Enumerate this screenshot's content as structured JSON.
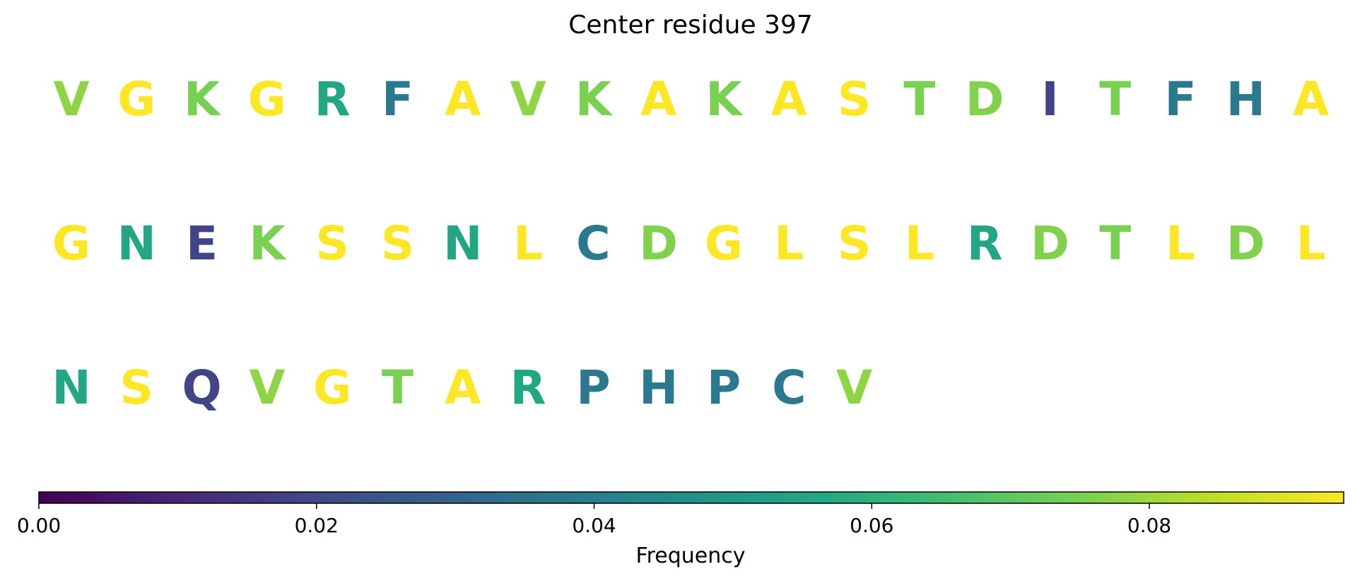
{
  "chart_data": {
    "type": "heatmap",
    "title": "Center residue 397",
    "colormap": "viridis",
    "residues": [
      {
        "letter": "V",
        "value": 0.078
      },
      {
        "letter": "G",
        "value": 0.094
      },
      {
        "letter": "K",
        "value": 0.075
      },
      {
        "letter": "G",
        "value": 0.094
      },
      {
        "letter": "R",
        "value": 0.056
      },
      {
        "letter": "F",
        "value": 0.038
      },
      {
        "letter": "A",
        "value": 0.094
      },
      {
        "letter": "V",
        "value": 0.078
      },
      {
        "letter": "K",
        "value": 0.075
      },
      {
        "letter": "A",
        "value": 0.094
      },
      {
        "letter": "K",
        "value": 0.075
      },
      {
        "letter": "A",
        "value": 0.094
      },
      {
        "letter": "S",
        "value": 0.094
      },
      {
        "letter": "T",
        "value": 0.075
      },
      {
        "letter": "D",
        "value": 0.076
      },
      {
        "letter": "I",
        "value": 0.019
      },
      {
        "letter": "T",
        "value": 0.075
      },
      {
        "letter": "F",
        "value": 0.038
      },
      {
        "letter": "H",
        "value": 0.038
      },
      {
        "letter": "A",
        "value": 0.094
      },
      {
        "letter": "G",
        "value": 0.094
      },
      {
        "letter": "N",
        "value": 0.056
      },
      {
        "letter": "E",
        "value": 0.019
      },
      {
        "letter": "K",
        "value": 0.075
      },
      {
        "letter": "S",
        "value": 0.094
      },
      {
        "letter": "S",
        "value": 0.094
      },
      {
        "letter": "N",
        "value": 0.056
      },
      {
        "letter": "L",
        "value": 0.094
      },
      {
        "letter": "C",
        "value": 0.038
      },
      {
        "letter": "D",
        "value": 0.076
      },
      {
        "letter": "G",
        "value": 0.094
      },
      {
        "letter": "L",
        "value": 0.094
      },
      {
        "letter": "S",
        "value": 0.094
      },
      {
        "letter": "L",
        "value": 0.094
      },
      {
        "letter": "R",
        "value": 0.056
      },
      {
        "letter": "D",
        "value": 0.076
      },
      {
        "letter": "T",
        "value": 0.075
      },
      {
        "letter": "L",
        "value": 0.094
      },
      {
        "letter": "D",
        "value": 0.076
      },
      {
        "letter": "L",
        "value": 0.094
      },
      {
        "letter": "N",
        "value": 0.056
      },
      {
        "letter": "S",
        "value": 0.094
      },
      {
        "letter": "Q",
        "value": 0.019
      },
      {
        "letter": "V",
        "value": 0.078
      },
      {
        "letter": "G",
        "value": 0.094
      },
      {
        "letter": "T",
        "value": 0.075
      },
      {
        "letter": "A",
        "value": 0.094
      },
      {
        "letter": "R",
        "value": 0.056
      },
      {
        "letter": "P",
        "value": 0.038
      },
      {
        "letter": "H",
        "value": 0.038
      },
      {
        "letter": "P",
        "value": 0.038
      },
      {
        "letter": "C",
        "value": 0.038
      },
      {
        "letter": "V",
        "value": 0.078
      }
    ],
    "colorbar": {
      "label": "Frequency",
      "range": [
        0.0,
        0.094
      ],
      "ticks": [
        0.0,
        0.02,
        0.04,
        0.06,
        0.08
      ],
      "tick_labels": [
        "0.00",
        "0.02",
        "0.04",
        "0.06",
        "0.08"
      ],
      "orientation": "horizontal"
    }
  }
}
